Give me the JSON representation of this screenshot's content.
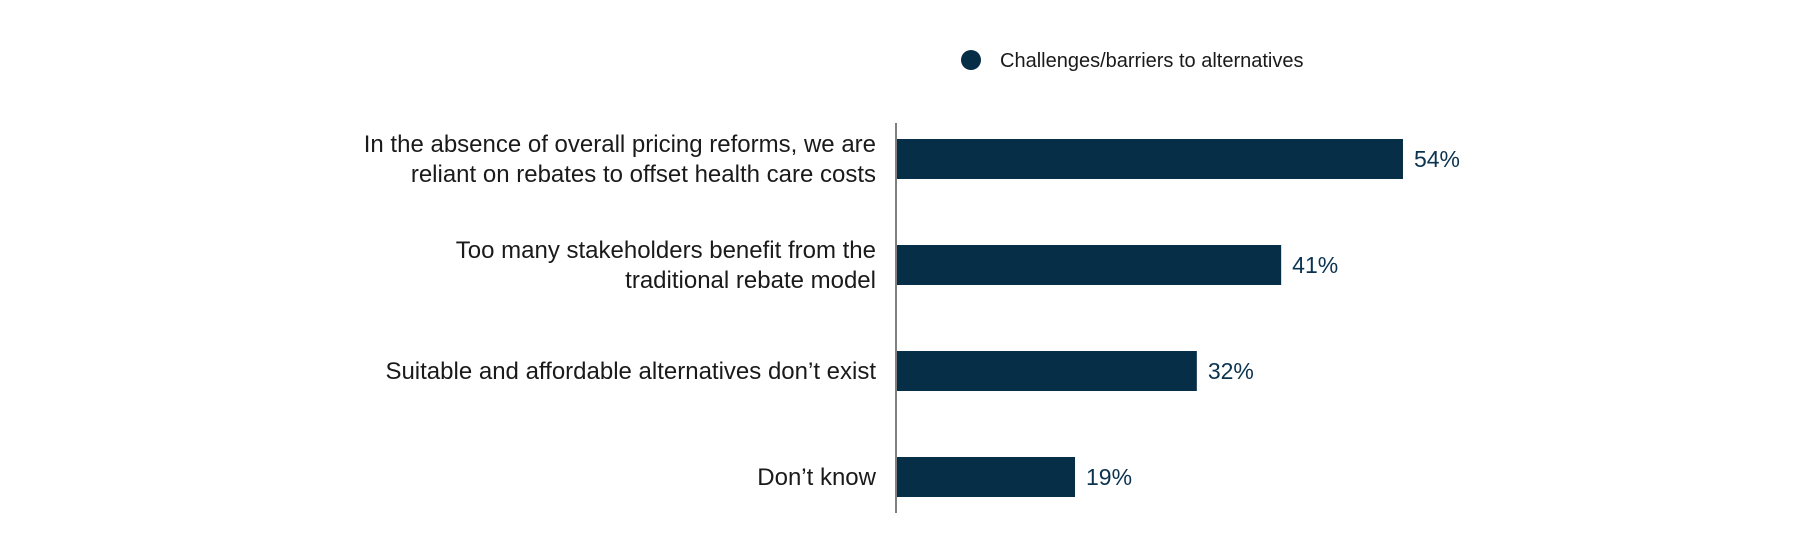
{
  "chart_data": {
    "type": "bar",
    "orientation": "horizontal",
    "categories": [
      [
        "In the absence of overall pricing reforms, we are",
        "reliant on rebates to offset health care costs"
      ],
      [
        "Too many stakeholders benefit from the",
        "traditional rebate model"
      ],
      [
        "Suitable and affordable alternatives don’t exist"
      ],
      [
        "Don’t know"
      ]
    ],
    "series": [
      {
        "name": "Challenges/barriers to alternatives",
        "values": [
          54,
          41,
          32,
          19
        ],
        "color": "#062e47"
      }
    ],
    "value_labels": [
      "54%",
      "41%",
      "32%",
      "19%"
    ],
    "xlim": [
      0,
      100
    ],
    "grid": false,
    "legend": {
      "placement": "top-center"
    }
  }
}
